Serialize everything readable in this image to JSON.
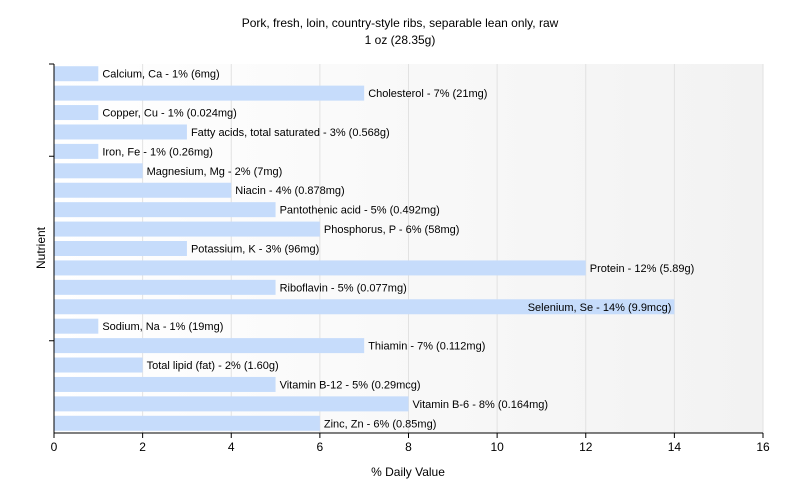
{
  "chart_data": {
    "type": "bar",
    "orientation": "horizontal",
    "title": "Pork, fresh, loin, country-style ribs, separable lean only, raw",
    "subtitle": "1 oz (28.35g)",
    "xlabel": "% Daily Value",
    "ylabel": "Nutrient",
    "xlim": [
      0,
      16
    ],
    "xticks": [
      "0",
      "2",
      "4",
      "6",
      "8",
      "10",
      "12",
      "14",
      "16"
    ],
    "grid": true,
    "bar_color": "#c6dcfb",
    "categories": [
      "Calcium, Ca",
      "Cholesterol",
      "Copper, Cu",
      "Fatty acids, total saturated",
      "Iron, Fe",
      "Magnesium, Mg",
      "Niacin",
      "Pantothenic acid",
      "Phosphorus, P",
      "Potassium, K",
      "Protein",
      "Riboflavin",
      "Selenium, Se",
      "Sodium, Na",
      "Thiamin",
      "Total lipid (fat)",
      "Vitamin B-12",
      "Vitamin B-6",
      "Zinc, Zn"
    ],
    "values": [
      1,
      7,
      1,
      3,
      1,
      2,
      4,
      5,
      6,
      3,
      12,
      5,
      14,
      1,
      7,
      2,
      5,
      8,
      6
    ],
    "labels": [
      "Calcium, Ca - 1% (6mg)",
      "Cholesterol - 7% (21mg)",
      "Copper, Cu - 1% (0.024mg)",
      "Fatty acids, total saturated - 3% (0.568g)",
      "Iron, Fe - 1% (0.26mg)",
      "Magnesium, Mg - 2% (7mg)",
      "Niacin - 4% (0.878mg)",
      "Pantothenic acid - 5% (0.492mg)",
      "Phosphorus, P - 6% (58mg)",
      "Potassium, K - 3% (96mg)",
      "Protein - 12% (5.89g)",
      "Riboflavin - 5% (0.077mg)",
      "Selenium, Se - 14% (9.9mcg)",
      "Sodium, Na - 1% (19mg)",
      "Thiamin - 7% (0.112mg)",
      "Total lipid (fat) - 2% (1.60g)",
      "Vitamin B-12 - 5% (0.29mcg)",
      "Vitamin B-6 - 8% (0.164mg)",
      "Zinc, Zn - 6% (0.85mg)"
    ]
  }
}
